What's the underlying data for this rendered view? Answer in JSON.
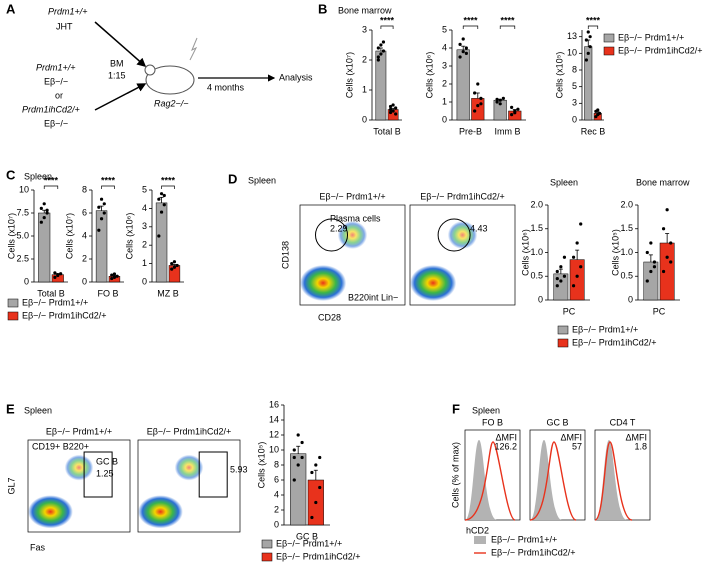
{
  "figure": {
    "panels": [
      "A",
      "B",
      "C",
      "D",
      "E",
      "F"
    ],
    "schematic": [
      "Prdm1+/+",
      "JHT",
      "BM",
      "1:15",
      "Prdm1+/+",
      "Eβ−/−",
      "or",
      "Prdm1ihCd2/+",
      "Eβ−/−",
      "Rag2−/−",
      "4 months",
      "Analysis"
    ],
    "panel_b_title": "Bone marrow",
    "panel_c_title": "Spleen",
    "panel_d_title": "Spleen",
    "panel_d_spleen": "Spleen",
    "panel_d_bm": "Bone marrow",
    "panel_e_title": "Spleen",
    "panel_f_title": "Spleen",
    "flow_d": {
      "titles": [
        "Eβ−/− Prdm1+/+",
        "Eβ−/− Prdm1ihCd2/+"
      ],
      "y_axis": "CD138",
      "x_axis": "CD28",
      "gate": "Plasma cells",
      "values": [
        2.29,
        4.43
      ],
      "note": "B220int Lin−"
    },
    "flow_e": {
      "titles": [
        "Eβ−/− Prdm1+/+",
        "Eβ−/− Prdm1ihCd2/+"
      ],
      "y_axis": "GL7",
      "x_axis": "Fas",
      "parent": "CD19+ B220+",
      "gate": "GC B",
      "values": [
        1.25,
        5.93
      ]
    },
    "hist_f": {
      "titles": [
        "FO B",
        "GC B",
        "CD4 T"
      ],
      "delta_label": "ΔMFI",
      "delta": [
        126.2,
        57,
        1.8
      ],
      "y_axis": "Cells (% of max)",
      "x_axis": "hCD2",
      "legend": [
        "Eβ−/− Prdm1+/+",
        "Eβ−/− Prdm1ihCd2/+"
      ]
    }
  },
  "chart_data": [
    {
      "type": "bar",
      "ylabel": "Cells (x10⁷)",
      "categories": [
        "Total B"
      ],
      "ylim": [
        0,
        3
      ],
      "yticks": [
        0,
        1,
        2,
        3
      ],
      "annotations": [
        "****"
      ],
      "series": [
        {
          "name": "Eβ−/− Prdm1+/+",
          "color": "#a6a6a6",
          "values": [
            2.3
          ],
          "errors": [
            0.1
          ],
          "points": [
            [
              2.0,
              2.2,
              2.3,
              2.4,
              2.5,
              2.6,
              2.1
            ]
          ]
        },
        {
          "name": "Eβ−/− Prdm1ihCd2/+",
          "color": "#e8321c",
          "values": [
            0.35
          ],
          "errors": [
            0.04
          ],
          "points": [
            [
              0.25,
              0.3,
              0.4,
              0.45,
              0.5,
              0.2,
              0.35
            ]
          ]
        }
      ]
    },
    {
      "type": "bar",
      "ylabel": "Cells (x10⁶)",
      "categories": [
        "Pre-B",
        "Imm B"
      ],
      "ylim": [
        0,
        5
      ],
      "yticks": [
        0,
        1,
        2,
        3,
        4,
        5
      ],
      "annotations": [
        "****",
        "****"
      ],
      "series": [
        {
          "color": "#a6a6a6",
          "values": [
            3.9,
            1.1
          ],
          "errors": [
            0.2,
            0.05
          ],
          "points": [
            [
              3.5,
              3.8,
              4.0,
              4.2,
              4.5,
              3.7
            ],
            [
              1.0,
              1.1,
              1.2,
              1.15,
              0.9
            ]
          ]
        },
        {
          "color": "#e8321c",
          "values": [
            1.2,
            0.5
          ],
          "errors": [
            0.3,
            0.08
          ],
          "points": [
            [
              0.5,
              0.8,
              1.2,
              1.5,
              2.0,
              0.9
            ],
            [
              0.3,
              0.5,
              0.6,
              0.7,
              0.4
            ]
          ]
        }
      ]
    },
    {
      "type": "bar",
      "ylabel": "Cells (x10⁵)",
      "categories": [
        "Rec B"
      ],
      "ylim": [
        0,
        13.5
      ],
      "yticks": [
        0,
        {
          "value": 2.5,
          "label": "3"
        },
        5,
        {
          "value": 7.5,
          "label": "8"
        },
        10,
        {
          "value": 12.5,
          "label": "13"
        }
      ],
      "annotations": [
        "****"
      ],
      "series": [
        {
          "color": "#a6a6a6",
          "values": [
            11
          ],
          "errors": [
            1
          ],
          "points": [
            [
              9,
              10,
              11,
              12,
              13.2,
              12.5
            ]
          ]
        },
        {
          "color": "#e8321c",
          "values": [
            1
          ],
          "errors": [
            0.2
          ],
          "points": [
            [
              0.5,
              0.8,
              1.0,
              1.3,
              1.5
            ]
          ]
        }
      ]
    },
    {
      "type": "bar",
      "ylabel": "Cells (x10⁷)",
      "categories": [
        "Total B"
      ],
      "ylim": [
        0,
        10
      ],
      "yticks": [
        0,
        2.5,
        {
          "value": 5,
          "label": "5.0"
        },
        7.5,
        10
      ],
      "annotations": [
        "****"
      ],
      "series": [
        {
          "name": "Eβ−/− Prdm1+/+",
          "color": "#a6a6a6",
          "values": [
            7.5
          ],
          "errors": [
            0.3
          ],
          "points": [
            [
              6.5,
              7.0,
              7.5,
              8.0,
              8.5,
              7.8
            ]
          ]
        },
        {
          "name": "Eβ−/− Prdm1ihCd2/+",
          "color": "#e8321c",
          "values": [
            0.8
          ],
          "errors": [
            0.1
          ],
          "points": [
            [
              0.5,
              0.7,
              0.9,
              1.0,
              0.8
            ]
          ]
        }
      ]
    },
    {
      "type": "bar",
      "ylabel": "Cells (x10⁷)",
      "categories": [
        "FO B"
      ],
      "ylim": [
        0,
        8
      ],
      "yticks": [
        0,
        2,
        4,
        6,
        8
      ],
      "annotations": [
        "****"
      ],
      "series": [
        {
          "color": "#a6a6a6",
          "values": [
            6.2
          ],
          "errors": [
            0.4
          ],
          "points": [
            [
              4.5,
              5.5,
              6.0,
              6.5,
              7.2,
              6.8
            ]
          ]
        },
        {
          "color": "#e8321c",
          "values": [
            0.5
          ],
          "errors": [
            0.05
          ],
          "points": [
            [
              0.3,
              0.4,
              0.5,
              0.6,
              0.7
            ]
          ]
        }
      ]
    },
    {
      "type": "bar",
      "ylabel": "Cells (x10⁶)",
      "categories": [
        "MZ B"
      ],
      "ylim": [
        0,
        5
      ],
      "yticks": [
        0,
        1,
        2,
        3,
        4,
        5
      ],
      "annotations": [
        "****"
      ],
      "series": [
        {
          "color": "#a6a6a6",
          "values": [
            4.3
          ],
          "errors": [
            0.3
          ],
          "points": [
            [
              2.5,
              3.8,
              4.2,
              4.5,
              4.8,
              4.7
            ]
          ]
        },
        {
          "color": "#e8321c",
          "values": [
            0.9
          ],
          "errors": [
            0.05
          ],
          "points": [
            [
              0.7,
              0.8,
              0.9,
              1.0,
              1.1
            ]
          ]
        }
      ]
    },
    {
      "type": "bar",
      "ylabel": "Cells (x10⁶)",
      "categories": [
        "PC"
      ],
      "ylim": [
        0,
        2
      ],
      "yticks": [
        0,
        0.5,
        {
          "value": 1,
          "label": "1.0"
        },
        1.5,
        {
          "value": 2,
          "label": "2.0"
        }
      ],
      "series": [
        {
          "name": "Eβ−/− Prdm1+/+",
          "color": "#a6a6a6",
          "values": [
            0.55
          ],
          "errors": [
            0.1
          ],
          "points": [
            [
              0.3,
              0.4,
              0.5,
              0.6,
              0.7,
              0.9,
              0.45
            ]
          ]
        },
        {
          "name": "Eβ−/− Prdm1ihCd2/+",
          "color": "#e8321c",
          "values": [
            0.85
          ],
          "errors": [
            0.2
          ],
          "points": [
            [
              0.3,
              0.5,
              0.7,
              0.9,
              1.2,
              1.6
            ]
          ]
        }
      ]
    },
    {
      "type": "bar",
      "ylabel": "Cells (x10⁵)",
      "categories": [
        "PC"
      ],
      "ylim": [
        0,
        2
      ],
      "yticks": [
        0,
        0.5,
        {
          "value": 1,
          "label": "1.0"
        },
        1.5,
        {
          "value": 2,
          "label": "2.0"
        }
      ],
      "series": [
        {
          "color": "#a6a6a6",
          "values": [
            0.8
          ],
          "errors": [
            0.15
          ],
          "points": [
            [
              0.4,
              0.6,
              0.8,
              1.0,
              1.2,
              0.7
            ]
          ]
        },
        {
          "color": "#e8321c",
          "values": [
            1.2
          ],
          "errors": [
            0.2
          ],
          "points": [
            [
              0.6,
              0.9,
              1.2,
              1.5,
              1.9,
              0.8
            ]
          ]
        }
      ]
    },
    {
      "type": "bar",
      "ylabel": "Cells (x10⁵)",
      "categories": [
        "GC B"
      ],
      "ylim": [
        0,
        16
      ],
      "yticks": [
        0,
        2,
        4,
        6,
        8,
        10,
        12,
        14,
        16
      ],
      "series": [
        {
          "name": "Eβ−/− Prdm1+/+",
          "color": "#a6a6a6",
          "values": [
            9.5
          ],
          "errors": [
            1
          ],
          "points": [
            [
              6,
              8,
              9,
              10,
              12,
              11,
              9
            ]
          ]
        },
        {
          "name": "Eβ−/− Prdm1ihCd2/+",
          "color": "#e8321c",
          "values": [
            6
          ],
          "errors": [
            1.3
          ],
          "points": [
            [
              1,
              3,
              5,
              7,
              8,
              9
            ]
          ]
        }
      ]
    }
  ]
}
